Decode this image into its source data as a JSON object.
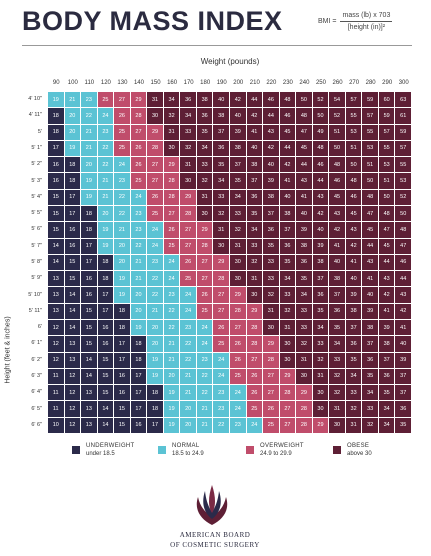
{
  "header": {
    "title": "BODY MASS INDEX",
    "formula_lhs": "BMI =",
    "formula_numerator": "mass (lb) x 703",
    "formula_denominator": "[height (in)]²"
  },
  "legend": [
    {
      "name": "UNDERWEIGHT",
      "range": "under 18.5",
      "color": "#2b2a4a"
    },
    {
      "name": "NORMAL",
      "range": "18.5 to 24.9",
      "color": "#5bc3d4"
    },
    {
      "name": "OVERWEIGHT",
      "range": "24.9 to 29.9",
      "color": "#c04d6b"
    },
    {
      "name": "OBESE",
      "range": "above 30",
      "color": "#5e1f35"
    }
  ],
  "organization": {
    "line1": "AMERICAN BOARD",
    "line2": "OF COSMETIC SURGERY"
  },
  "chart_data": {
    "type": "heatmap",
    "title": "BODY MASS INDEX",
    "xlabel": "Weight (pounds)",
    "ylabel": "Height (feet & inches)",
    "x": [
      90,
      100,
      110,
      120,
      130,
      140,
      150,
      160,
      170,
      180,
      190,
      200,
      210,
      220,
      230,
      240,
      250,
      260,
      270,
      280,
      290,
      300
    ],
    "y": [
      "4' 10\"",
      "4' 11\"",
      "5'",
      "5' 1\"",
      "5' 2\"",
      "5' 3\"",
      "5' 4\"",
      "5' 5\"",
      "5' 6\"",
      "5' 7\"",
      "5' 8\"",
      "5' 9\"",
      "5' 10\"",
      "5' 11\"",
      "6'",
      "6' 1\"",
      "6' 2\"",
      "6' 3\"",
      "6' 4\"",
      "6' 5\"",
      "6' 6\""
    ],
    "values": [
      [
        19,
        21,
        23,
        25,
        27,
        29,
        31,
        34,
        36,
        38,
        40,
        42,
        44,
        46,
        48,
        50,
        52,
        54,
        57,
        59,
        60,
        63
      ],
      [
        18,
        20,
        22,
        24,
        26,
        28,
        30,
        32,
        34,
        36,
        38,
        40,
        42,
        44,
        46,
        48,
        50,
        52,
        55,
        57,
        59,
        61
      ],
      [
        18,
        20,
        21,
        23,
        25,
        27,
        29,
        31,
        33,
        35,
        37,
        39,
        41,
        43,
        45,
        47,
        49,
        51,
        53,
        55,
        57,
        59
      ],
      [
        17,
        19,
        21,
        22,
        25,
        26,
        28,
        30,
        32,
        34,
        36,
        38,
        40,
        42,
        44,
        45,
        48,
        50,
        51,
        53,
        55,
        57
      ],
      [
        16,
        18,
        20,
        22,
        24,
        26,
        27,
        29,
        31,
        33,
        35,
        37,
        38,
        40,
        42,
        44,
        46,
        48,
        50,
        51,
        53,
        55
      ],
      [
        16,
        18,
        19,
        21,
        23,
        25,
        27,
        28,
        30,
        32,
        34,
        35,
        37,
        39,
        41,
        43,
        44,
        46,
        48,
        50,
        51,
        53
      ],
      [
        15,
        17,
        19,
        21,
        22,
        24,
        26,
        28,
        29,
        31,
        33,
        34,
        36,
        38,
        40,
        41,
        43,
        45,
        46,
        48,
        50,
        52
      ],
      [
        15,
        17,
        18,
        20,
        22,
        23,
        25,
        27,
        28,
        30,
        32,
        33,
        35,
        37,
        38,
        40,
        42,
        43,
        45,
        47,
        48,
        50
      ],
      [
        15,
        16,
        18,
        19,
        21,
        23,
        24,
        26,
        27,
        29,
        31,
        32,
        34,
        36,
        37,
        39,
        40,
        42,
        43,
        45,
        47,
        48
      ],
      [
        14,
        16,
        17,
        19,
        20,
        22,
        24,
        25,
        27,
        28,
        30,
        31,
        33,
        35,
        36,
        38,
        39,
        41,
        42,
        44,
        45,
        47
      ],
      [
        14,
        15,
        17,
        18,
        20,
        21,
        23,
        24,
        26,
        27,
        29,
        30,
        32,
        33,
        35,
        36,
        38,
        40,
        41,
        43,
        44,
        46
      ],
      [
        13,
        15,
        16,
        18,
        19,
        21,
        22,
        24,
        25,
        27,
        28,
        30,
        31,
        33,
        34,
        35,
        37,
        38,
        40,
        41,
        43,
        44
      ],
      [
        13,
        14,
        16,
        17,
        19,
        20,
        22,
        23,
        24,
        26,
        27,
        29,
        30,
        32,
        33,
        34,
        36,
        37,
        39,
        40,
        42,
        43
      ],
      [
        13,
        14,
        15,
        17,
        18,
        20,
        21,
        22,
        24,
        25,
        27,
        28,
        29,
        31,
        32,
        33,
        35,
        36,
        38,
        39,
        41,
        42
      ],
      [
        12,
        14,
        15,
        16,
        18,
        19,
        20,
        22,
        23,
        24,
        26,
        27,
        28,
        30,
        31,
        33,
        34,
        35,
        37,
        38,
        39,
        41
      ],
      [
        12,
        13,
        15,
        16,
        17,
        18,
        20,
        21,
        22,
        24,
        25,
        26,
        28,
        29,
        30,
        32,
        33,
        34,
        36,
        37,
        38,
        40
      ],
      [
        12,
        13,
        14,
        15,
        17,
        18,
        19,
        21,
        22,
        23,
        24,
        26,
        27,
        28,
        30,
        31,
        32,
        33,
        35,
        36,
        37,
        39
      ],
      [
        11,
        12,
        14,
        15,
        16,
        17,
        19,
        20,
        21,
        22,
        24,
        25,
        26,
        27,
        29,
        30,
        31,
        32,
        34,
        35,
        36,
        37
      ],
      [
        11,
        12,
        13,
        15,
        16,
        17,
        18,
        19,
        21,
        22,
        23,
        24,
        26,
        27,
        28,
        29,
        30,
        32,
        33,
        34,
        35,
        37
      ],
      [
        11,
        12,
        13,
        14,
        15,
        17,
        18,
        19,
        20,
        21,
        23,
        24,
        25,
        26,
        27,
        28,
        30,
        31,
        32,
        33,
        34,
        36
      ],
      [
        10,
        12,
        13,
        14,
        15,
        16,
        17,
        19,
        20,
        21,
        22,
        23,
        24,
        25,
        27,
        28,
        29,
        30,
        31,
        32,
        34,
        35
      ]
    ],
    "categories": [
      {
        "name": "UNDERWEIGHT",
        "range": "under 18.5",
        "max": 18.5,
        "color": "#2b2a4a"
      },
      {
        "name": "NORMAL",
        "range": "18.5 to 24.9",
        "max": 25,
        "color": "#5bc3d4"
      },
      {
        "name": "OVERWEIGHT",
        "range": "24.9 to 29.9",
        "max": 30,
        "color": "#c04d6b"
      },
      {
        "name": "OBESE",
        "range": "above 30",
        "max": 999,
        "color": "#5e1f35"
      }
    ],
    "legend_position": "bottom",
    "grid": false
  }
}
